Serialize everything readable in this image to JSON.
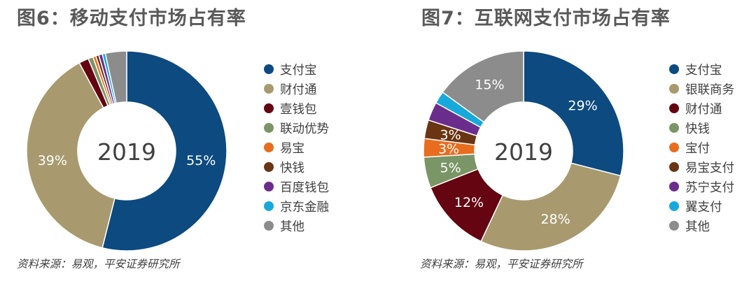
{
  "chart_data": [
    {
      "type": "pie",
      "title": "图6：移动支付市场占有率",
      "center_label": "2019",
      "source": "资料来源：易观，平安证券研究所",
      "slices": [
        {
          "name": "支付宝",
          "value": 55,
          "color": "#0c4a80",
          "label": "55%"
        },
        {
          "name": "财付通",
          "value": 39,
          "color": "#a89a6e",
          "label": "39%"
        },
        {
          "name": "壹钱包",
          "value": 1.6,
          "color": "#640511",
          "label": ""
        },
        {
          "name": "联动优势",
          "value": 0.8,
          "color": "#7a9566",
          "label": ""
        },
        {
          "name": "易宝",
          "value": 0.5,
          "color": "#e86d1f",
          "label": ""
        },
        {
          "name": "快钱",
          "value": 0.5,
          "color": "#6a3513",
          "label": ""
        },
        {
          "name": "百度钱包",
          "value": 0.6,
          "color": "#6b2d8c",
          "label": ""
        },
        {
          "name": "京东金融",
          "value": 0.5,
          "color": "#17a9dc",
          "label": ""
        },
        {
          "name": "其他",
          "value": 3.5,
          "color": "#8c8c8c",
          "label": ""
        }
      ]
    },
    {
      "type": "pie",
      "title": "图7：互联网支付市场占有率",
      "center_label": "2019",
      "source": "资料来源：易观，平安证券研究所",
      "slices": [
        {
          "name": "支付宝",
          "value": 29,
          "color": "#0c4a80",
          "label": "29%"
        },
        {
          "name": "银联商务",
          "value": 28,
          "color": "#a89a6e",
          "label": "28%"
        },
        {
          "name": "财付通",
          "value": 12,
          "color": "#640511",
          "label": "12%"
        },
        {
          "name": "快钱",
          "value": 5,
          "color": "#7a9566",
          "label": "5%"
        },
        {
          "name": "宝付",
          "value": 3,
          "color": "#e86d1f",
          "label": "3%"
        },
        {
          "name": "易宝支付",
          "value": 3,
          "color": "#6a3513",
          "label": "3%"
        },
        {
          "name": "苏宁支付",
          "value": 3,
          "color": "#6b2d8c",
          "label": ""
        },
        {
          "name": "翼支付",
          "value": 2,
          "color": "#17a9dc",
          "label": ""
        },
        {
          "name": "其他",
          "value": 15,
          "color": "#8c8c8c",
          "label": "15%"
        }
      ]
    }
  ]
}
